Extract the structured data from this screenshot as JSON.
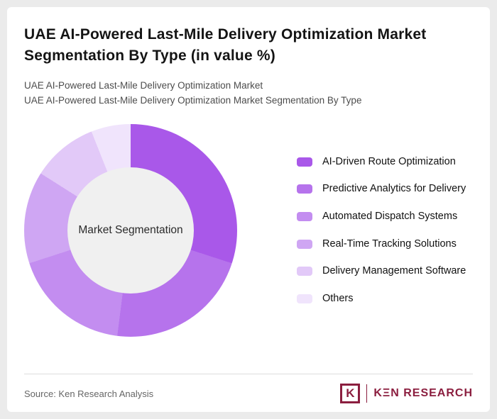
{
  "page": {
    "title": "UAE AI-Powered Last-Mile Delivery Optimization Market Segmentation By Type (in value %)",
    "subtitle1": "UAE AI-Powered Last-Mile Delivery Optimization Market",
    "subtitle2": "UAE AI-Powered Last-Mile Delivery Optimization Market Segmentation By Type"
  },
  "chart_data": {
    "type": "pie",
    "donut": true,
    "title": "UAE AI-Powered Last-Mile Delivery Optimization Market Segmentation By Type (in value %)",
    "center_label": "Market Segmentation",
    "legend_position": "right",
    "start_angle_deg": 0,
    "direction": "clockwise",
    "unit": "value %",
    "series": [
      {
        "label": "AI-Driven Route Optimization",
        "value": 30,
        "color": "#a958e9"
      },
      {
        "label": "Predictive Analytics for Delivery",
        "value": 22,
        "color": "#b673ec"
      },
      {
        "label": "Automated Dispatch Systems",
        "value": 18,
        "color": "#c38df0"
      },
      {
        "label": "Real-Time Tracking Solutions",
        "value": 14,
        "color": "#cfa6f3"
      },
      {
        "label": "Delivery Management Software",
        "value": 10,
        "color": "#e2c9f8"
      },
      {
        "label": "Others",
        "value": 6,
        "color": "#f0e4fc"
      }
    ],
    "hole_color": "#f0f0f0"
  },
  "footer": {
    "source": "Source: Ken Research Analysis",
    "logo": {
      "mark": "K",
      "text": "KΞN RESEARCH",
      "brand_color": "#8b1e3f"
    }
  }
}
